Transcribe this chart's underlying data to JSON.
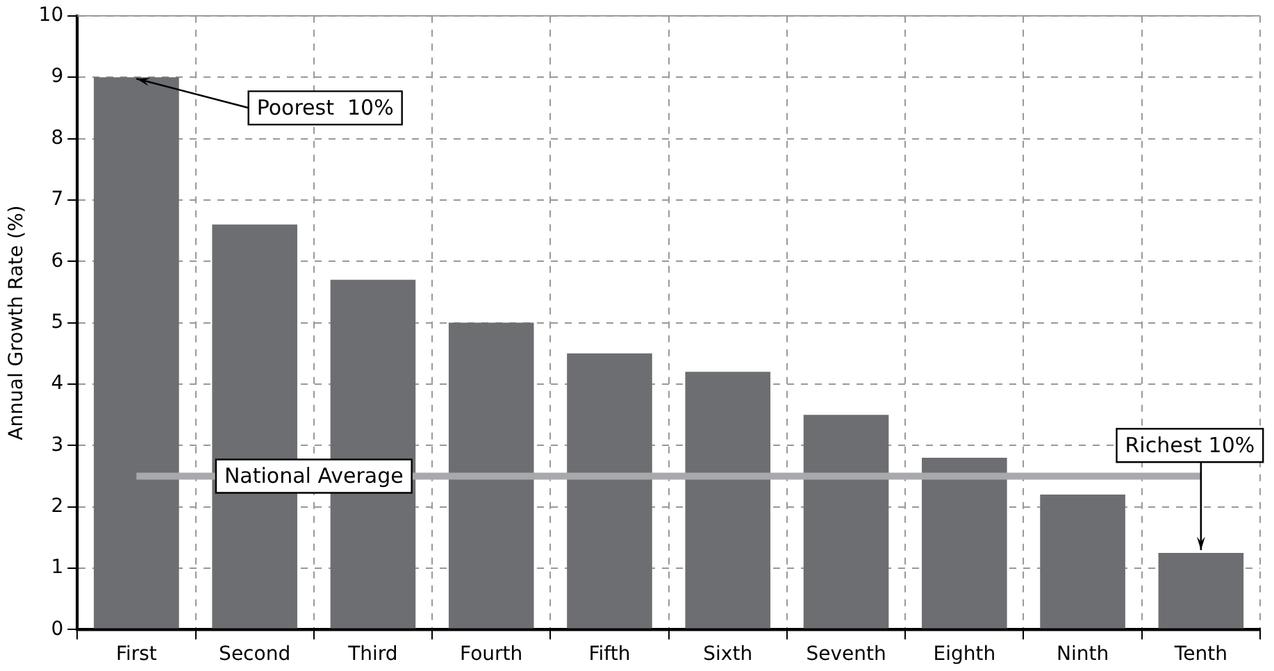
{
  "chart_data": {
    "type": "bar",
    "ylabel": "Annual Growth Rate (%)",
    "categories": [
      "First",
      "Second",
      "Third",
      "Fourth",
      "Fifth",
      "Sixth",
      "Seventh",
      "Eighth",
      "Ninth",
      "Tenth"
    ],
    "values": [
      9.0,
      6.6,
      5.7,
      5.0,
      4.5,
      4.2,
      3.5,
      2.8,
      2.2,
      1.25
    ],
    "color": "#6d6e71",
    "ylim": [
      0,
      10
    ],
    "yticks": [
      0,
      1,
      2,
      3,
      4,
      5,
      6,
      7,
      8,
      9,
      10
    ],
    "grid": true,
    "legend": false,
    "ref_lines": [
      {
        "axis": "y",
        "value": 2.5,
        "label": "National Average",
        "color": "#a7a9ac"
      }
    ],
    "annotations": [
      {
        "text": "Poorest  10%",
        "x": "First",
        "y": 9
      },
      {
        "text": "Richest 10%",
        "x": "Tenth",
        "y": 1.25
      }
    ]
  }
}
